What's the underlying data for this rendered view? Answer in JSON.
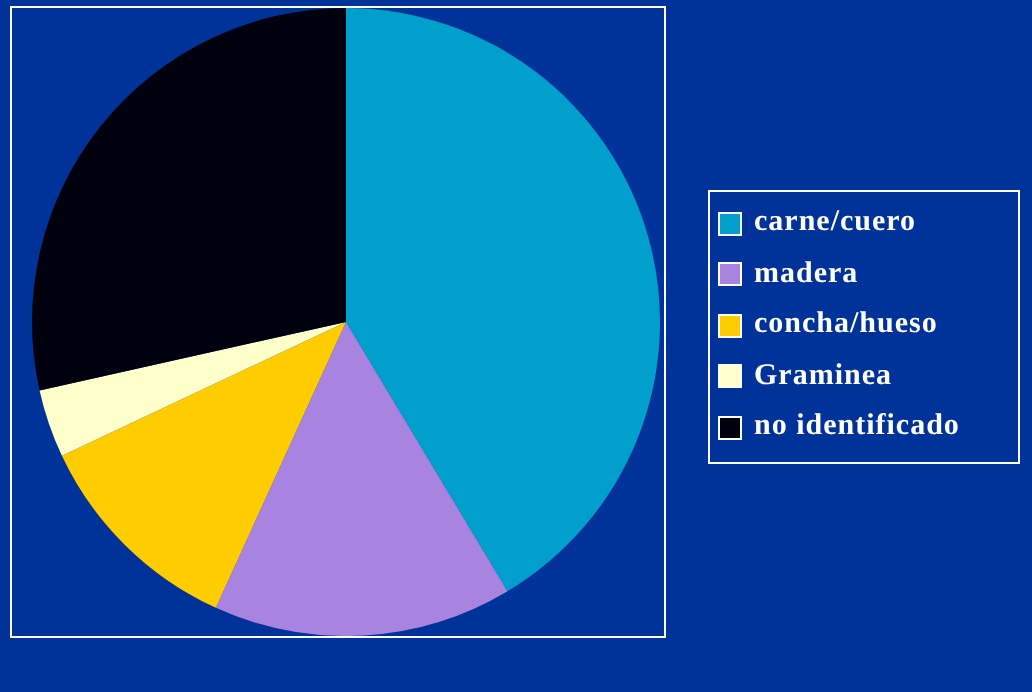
{
  "chart_data": {
    "type": "pie",
    "categories": [
      "carne/cuero",
      "madera",
      "concha/hueso",
      "Graminea",
      "no identificado"
    ],
    "values": [
      41.4,
      15.4,
      11.2,
      3.5,
      28.5
    ],
    "colors": [
      "#009fcc",
      "#a884e0",
      "#ffcc00",
      "#ffffcc",
      "#00000f"
    ],
    "legend": "right"
  }
}
